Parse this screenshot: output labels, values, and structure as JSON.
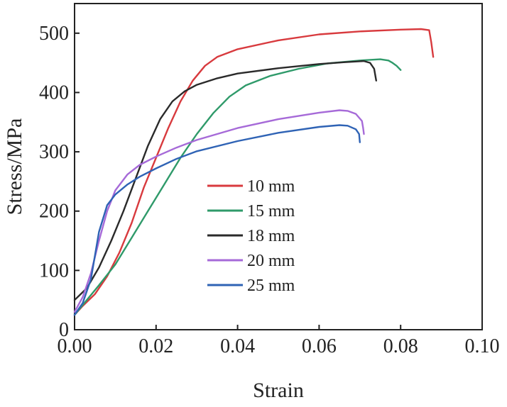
{
  "chart_data": {
    "type": "line",
    "title": "",
    "xlabel": "Strain",
    "ylabel": "Stress/MPa",
    "xlim": [
      0,
      0.1
    ],
    "ylim": [
      0,
      550
    ],
    "x_ticks": [
      0.0,
      0.02,
      0.04,
      0.06,
      0.08,
      0.1
    ],
    "x_tick_labels": [
      "0.00",
      "0.02",
      "0.04",
      "0.06",
      "0.08",
      "0.10"
    ],
    "y_ticks": [
      0,
      100,
      200,
      300,
      400,
      500
    ],
    "y_tick_labels": [
      "0",
      "100",
      "200",
      "300",
      "400",
      "500"
    ],
    "grid": false,
    "legend_position": "center",
    "series": [
      {
        "name": "10 mm",
        "color": "#d83a3e",
        "points": [
          [
            0.0,
            25
          ],
          [
            0.002,
            40
          ],
          [
            0.005,
            60
          ],
          [
            0.008,
            90
          ],
          [
            0.011,
            130
          ],
          [
            0.014,
            180
          ],
          [
            0.017,
            240
          ],
          [
            0.02,
            290
          ],
          [
            0.023,
            340
          ],
          [
            0.026,
            385
          ],
          [
            0.029,
            420
          ],
          [
            0.032,
            445
          ],
          [
            0.035,
            460
          ],
          [
            0.04,
            473
          ],
          [
            0.05,
            488
          ],
          [
            0.06,
            498
          ],
          [
            0.07,
            503
          ],
          [
            0.08,
            506
          ],
          [
            0.085,
            507
          ],
          [
            0.087,
            505
          ],
          [
            0.0875,
            485
          ],
          [
            0.088,
            460
          ]
        ]
      },
      {
        "name": "15 mm",
        "color": "#2f9a6a",
        "points": [
          [
            0.0,
            25
          ],
          [
            0.003,
            50
          ],
          [
            0.006,
            75
          ],
          [
            0.01,
            110
          ],
          [
            0.014,
            155
          ],
          [
            0.018,
            200
          ],
          [
            0.022,
            245
          ],
          [
            0.026,
            290
          ],
          [
            0.03,
            330
          ],
          [
            0.034,
            365
          ],
          [
            0.038,
            393
          ],
          [
            0.042,
            412
          ],
          [
            0.048,
            428
          ],
          [
            0.055,
            440
          ],
          [
            0.062,
            449
          ],
          [
            0.07,
            454
          ],
          [
            0.075,
            456
          ],
          [
            0.077,
            454
          ],
          [
            0.078,
            450
          ],
          [
            0.079,
            445
          ],
          [
            0.08,
            438
          ]
        ]
      },
      {
        "name": "18 mm",
        "color": "#2a2a2a",
        "points": [
          [
            0.0,
            50
          ],
          [
            0.003,
            70
          ],
          [
            0.006,
            105
          ],
          [
            0.009,
            150
          ],
          [
            0.012,
            200
          ],
          [
            0.015,
            255
          ],
          [
            0.018,
            310
          ],
          [
            0.021,
            355
          ],
          [
            0.024,
            385
          ],
          [
            0.027,
            402
          ],
          [
            0.03,
            413
          ],
          [
            0.035,
            424
          ],
          [
            0.04,
            432
          ],
          [
            0.05,
            441
          ],
          [
            0.06,
            448
          ],
          [
            0.066,
            451
          ],
          [
            0.071,
            453
          ],
          [
            0.0725,
            450
          ],
          [
            0.0735,
            440
          ],
          [
            0.074,
            420
          ]
        ]
      },
      {
        "name": "20 mm",
        "color": "#a66ad8",
        "points": [
          [
            0.0,
            30
          ],
          [
            0.002,
            55
          ],
          [
            0.004,
            95
          ],
          [
            0.006,
            150
          ],
          [
            0.008,
            200
          ],
          [
            0.01,
            235
          ],
          [
            0.013,
            262
          ],
          [
            0.016,
            278
          ],
          [
            0.02,
            292
          ],
          [
            0.025,
            307
          ],
          [
            0.03,
            320
          ],
          [
            0.04,
            340
          ],
          [
            0.05,
            355
          ],
          [
            0.06,
            366
          ],
          [
            0.065,
            370
          ],
          [
            0.067,
            369
          ],
          [
            0.069,
            364
          ],
          [
            0.0705,
            352
          ],
          [
            0.0708,
            340
          ],
          [
            0.071,
            330
          ]
        ]
      },
      {
        "name": "25 mm",
        "color": "#2f63b5",
        "points": [
          [
            0.0,
            25
          ],
          [
            0.002,
            45
          ],
          [
            0.004,
            85
          ],
          [
            0.006,
            165
          ],
          [
            0.008,
            210
          ],
          [
            0.01,
            228
          ],
          [
            0.013,
            245
          ],
          [
            0.016,
            258
          ],
          [
            0.02,
            272
          ],
          [
            0.025,
            288
          ],
          [
            0.03,
            301
          ],
          [
            0.04,
            318
          ],
          [
            0.05,
            332
          ],
          [
            0.06,
            342
          ],
          [
            0.065,
            345
          ],
          [
            0.067,
            344
          ],
          [
            0.069,
            338
          ],
          [
            0.0698,
            330
          ],
          [
            0.07,
            316
          ]
        ]
      }
    ]
  }
}
